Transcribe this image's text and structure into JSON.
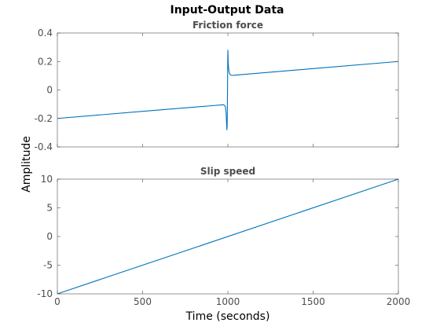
{
  "figure": {
    "title": "Input-Output Data"
  },
  "chart_data": [
    {
      "type": "line",
      "title": "Friction force",
      "xlabel": "",
      "ylabel": "",
      "xlim": [
        0,
        2000
      ],
      "ylim": [
        -0.4,
        0.4
      ],
      "xticks": [
        0,
        500,
        1000,
        1500,
        2000
      ],
      "yticks": [
        -0.4,
        -0.2,
        0,
        0.2,
        0.4
      ],
      "xtick_labels": [
        "",
        "",
        "",
        "",
        ""
      ],
      "ytick_labels": [
        "-0.4",
        "-0.2",
        "0",
        "0.2",
        "0.4"
      ],
      "grid": false,
      "series": [
        {
          "color": "#0072bd",
          "x": [
            0,
            500,
            900,
            960,
            975,
            985,
            990,
            994,
            996,
            998,
            999,
            1000,
            1001,
            1002,
            1004,
            1006,
            1010,
            1015,
            1025,
            1040,
            1500,
            2000
          ],
          "y": [
            -0.2,
            -0.15,
            -0.111,
            -0.105,
            -0.103,
            -0.115,
            -0.165,
            -0.28,
            -0.25,
            0.0,
            0.15,
            0.28,
            0.25,
            0.2,
            0.16,
            0.135,
            0.115,
            0.106,
            0.102,
            0.104,
            0.15,
            0.2
          ]
        }
      ]
    },
    {
      "type": "line",
      "title": "Slip speed",
      "xlabel": "Time (seconds)",
      "ylabel": "",
      "xlim": [
        0,
        2000
      ],
      "ylim": [
        -10,
        10
      ],
      "xticks": [
        0,
        500,
        1000,
        1500,
        2000
      ],
      "yticks": [
        -10,
        -5,
        0,
        5,
        10
      ],
      "xtick_labels": [
        "0",
        "500",
        "1000",
        "1500",
        "2000"
      ],
      "ytick_labels": [
        "-10",
        "-5",
        "0",
        "5",
        "10"
      ],
      "grid": false,
      "series": [
        {
          "color": "#0072bd",
          "x": [
            0,
            2000
          ],
          "y": [
            -10,
            10
          ]
        }
      ]
    }
  ],
  "shared": {
    "ylabel": "Amplitude"
  }
}
